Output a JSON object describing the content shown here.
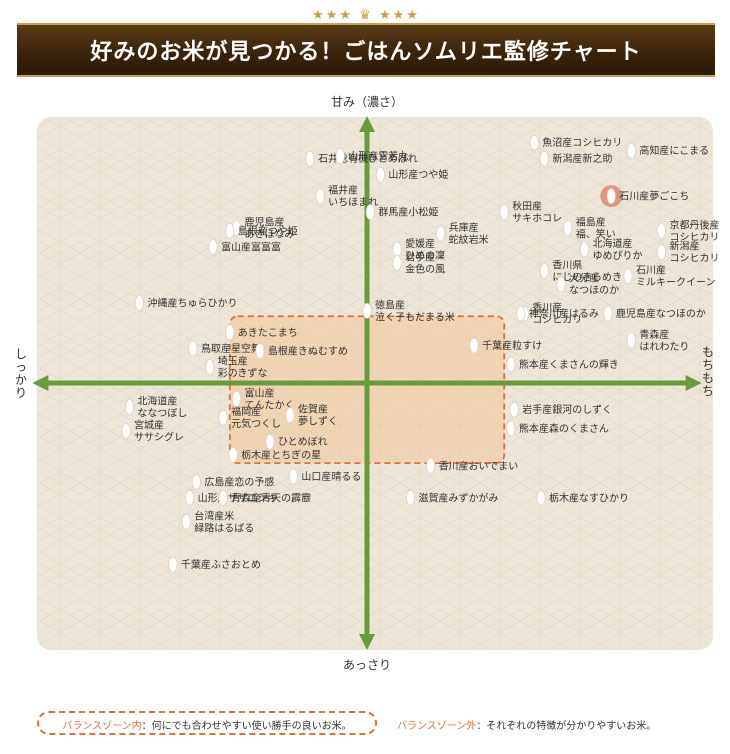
{
  "banner": {
    "decoration": "★★★ ♛ ★★★",
    "title": "好みのお米が見つかる！ごはんソムリエ監修チャート"
  },
  "chart_data": {
    "type": "scatter",
    "title": "好みのお米が見つかる！ごはんソムリエ監修チャート",
    "xlabel_left": "しっかり",
    "xlabel_right": "もちもち",
    "ylabel_top": "甘み（濃さ）",
    "ylabel_bottom": "あっさり",
    "xlim": [
      -100,
      100
    ],
    "ylim": [
      -100,
      100
    ],
    "grid": false,
    "balance_zone": {
      "x": [
        -41,
        41
      ],
      "y": [
        -30,
        25
      ]
    },
    "colors": {
      "axis": "#6a9a3e",
      "background": "#ede6d8",
      "grain": "#ffffff",
      "highlight": "#d9604d",
      "zone": "#f4c48f",
      "zone_border": "#e2703a"
    },
    "points": [
      {
        "label": "魚沼産コシヒカリ",
        "x": 50,
        "y": 90
      },
      {
        "label": "高知産にこまる",
        "x": 79,
        "y": 87
      },
      {
        "label": "新潟産新之助",
        "x": 53,
        "y": 84
      },
      {
        "label": "石川産夢ごこち",
        "x": 73,
        "y": 70,
        "highlight": true
      },
      {
        "label": "石井稔有機ひとめぼれ",
        "x": -17,
        "y": 84
      },
      {
        "label": "山形産雪若丸",
        "x": -8,
        "y": 85
      },
      {
        "label": "山形産つや姫",
        "x": 4,
        "y": 78
      },
      {
        "label": "福井産 いちほまれ",
        "x": -14,
        "y": 70
      },
      {
        "label": "群馬産小松姫",
        "x": 1,
        "y": 64
      },
      {
        "label": "秋田産 サキホコレ",
        "x": 41,
        "y": 64
      },
      {
        "label": "福島産 福、笑い",
        "x": 60,
        "y": 58
      },
      {
        "label": "京都丹後産 コシヒカリ",
        "x": 88,
        "y": 57
      },
      {
        "label": "鹿児島産 あきほなみ",
        "x": -39,
        "y": 58
      },
      {
        "label": "島根産つや姫",
        "x": -41,
        "y": 57
      },
      {
        "label": "兵庫産 蛇紋岩米",
        "x": 22,
        "y": 56
      },
      {
        "label": "愛媛産 ひめの凜",
        "x": 9,
        "y": 50
      },
      {
        "label": "岩手産 金色の風",
        "x": 9,
        "y": 45
      },
      {
        "label": "富山産富富富",
        "x": -46,
        "y": 51
      },
      {
        "label": "北海道産 ゆめぴりか",
        "x": 65,
        "y": 50
      },
      {
        "label": "新潟産 コシヒカリ",
        "x": 88,
        "y": 49
      },
      {
        "label": "香川県 にじのきらめき",
        "x": 53,
        "y": 42
      },
      {
        "label": "大分産 なつほのか",
        "x": 58,
        "y": 37
      },
      {
        "label": "石川産 ミルキークイーン",
        "x": 78,
        "y": 40
      },
      {
        "label": "沖縄産ちゅらひかり",
        "x": -68,
        "y": 30
      },
      {
        "label": "徳島産 泣く子もだまる米",
        "x": 0,
        "y": 27
      },
      {
        "label": "香川産 コシヒカリ",
        "x": 47,
        "y": 26
      },
      {
        "label": "神奈川産はるみ",
        "x": 46,
        "y": 26
      },
      {
        "label": "鹿児島産なつほのか",
        "x": 72,
        "y": 26
      },
      {
        "label": "あきたこまち",
        "x": -41,
        "y": 19
      },
      {
        "label": "青森産 はれわたり",
        "x": 79,
        "y": 16
      },
      {
        "label": "千葉産粒すけ",
        "x": 32,
        "y": 14
      },
      {
        "label": "鳥取産星空舞",
        "x": -52,
        "y": 13
      },
      {
        "label": "島根産きぬむすめ",
        "x": -32,
        "y": 12
      },
      {
        "label": "熊本産くまさんの輝き",
        "x": 43,
        "y": 7
      },
      {
        "label": "埼玉産 彩のきずな",
        "x": -47,
        "y": 6
      },
      {
        "label": "富山産 てんたかく",
        "x": -39,
        "y": -6
      },
      {
        "label": "北海道産 ななつぼし",
        "x": -71,
        "y": -9
      },
      {
        "label": "佐賀産 夢しずく",
        "x": -23,
        "y": -12
      },
      {
        "label": "岩手産銀河のしずく",
        "x": 44,
        "y": -10
      },
      {
        "label": "福岡産 元気つくし",
        "x": -43,
        "y": -13
      },
      {
        "label": "熊本産森のくまさん",
        "x": 43,
        "y": -17
      },
      {
        "label": "宮城産 ササシグレ",
        "x": -72,
        "y": -18
      },
      {
        "label": "ひとめぼれ",
        "x": -29,
        "y": -22
      },
      {
        "label": "栃木産とちぎの星",
        "x": -40,
        "y": -27
      },
      {
        "label": "香川産おいでまい",
        "x": 19,
        "y": -31
      },
      {
        "label": "山口産晴るる",
        "x": -22,
        "y": -35
      },
      {
        "label": "広島産恋の予感",
        "x": -51,
        "y": -37
      },
      {
        "label": "山形産ササニシキ",
        "x": -53,
        "y": -43
      },
      {
        "label": "青森産青天の霹靂",
        "x": -43,
        "y": -43
      },
      {
        "label": "滋賀産みずかがみ",
        "x": 13,
        "y": -43
      },
      {
        "label": "栃木産なすひかり",
        "x": 52,
        "y": -43
      },
      {
        "label": "台湾産米 緑路はるばる",
        "x": -54,
        "y": -52
      },
      {
        "label": "千葉産ふさおとめ",
        "x": -58,
        "y": -68
      }
    ]
  },
  "legend": {
    "inside_key": "バランスゾーン内",
    "inside_text": "：何にでも合わせやすい使い勝手の良いお米。",
    "outside_key": "バランスゾーン外",
    "outside_text": "：それぞれの特徴が分かりやすいお米。"
  }
}
